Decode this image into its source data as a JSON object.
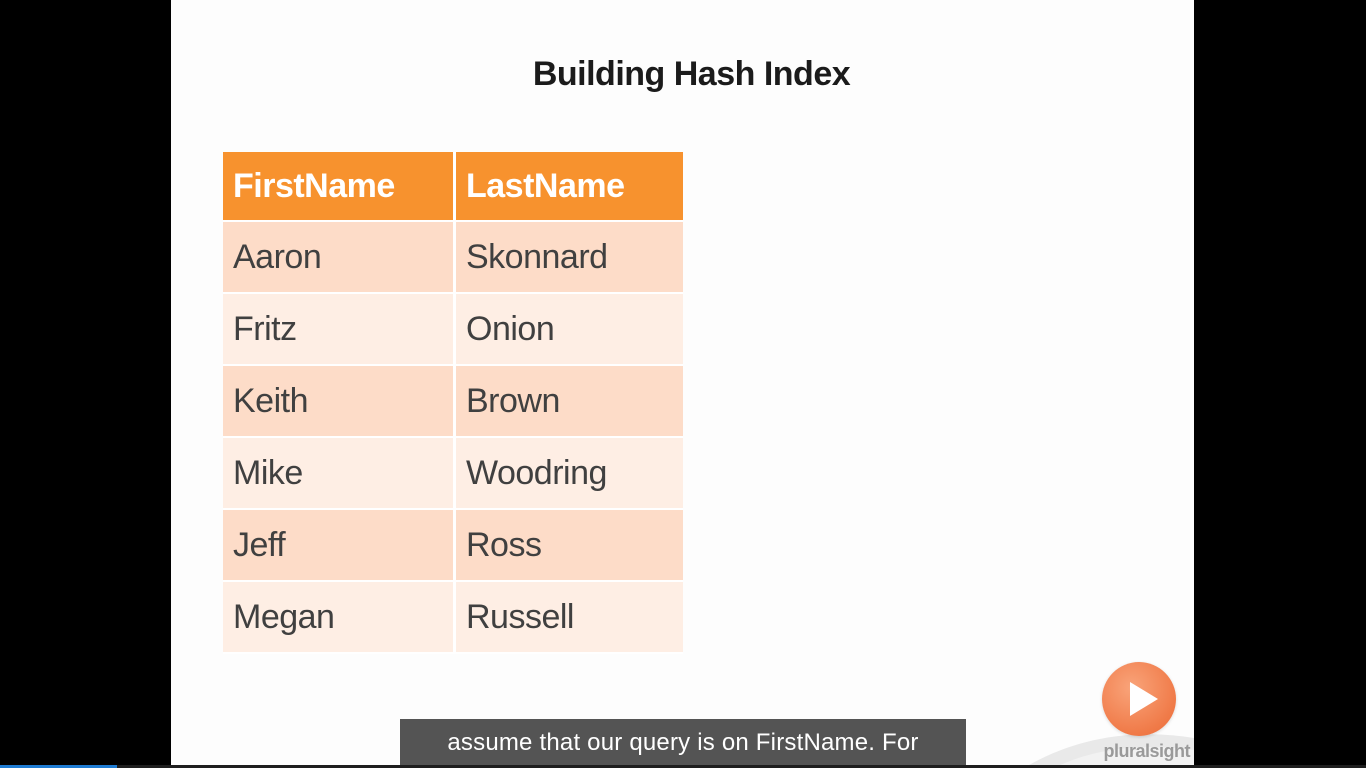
{
  "slide": {
    "title": "Building Hash Index",
    "table": {
      "headers": [
        "FirstName",
        "LastName"
      ],
      "rows": [
        [
          "Aaron",
          "Skonnard"
        ],
        [
          "Fritz",
          "Onion"
        ],
        [
          "Keith",
          "Brown"
        ],
        [
          "Mike",
          "Woodring"
        ],
        [
          "Jeff",
          "Ross"
        ],
        [
          "Megan",
          "Russell"
        ]
      ]
    },
    "logo": {
      "text": "pluralsight",
      "icon": "play-icon",
      "color": "#f07a48"
    }
  },
  "player": {
    "caption": "assume that our query is on FirstName. For",
    "progress": 0.086
  },
  "colors": {
    "header_bg": "#f7922e",
    "row_odd_bg": "#fddcc8",
    "row_even_bg": "#feeee4",
    "progress": "#1e7bd2"
  }
}
